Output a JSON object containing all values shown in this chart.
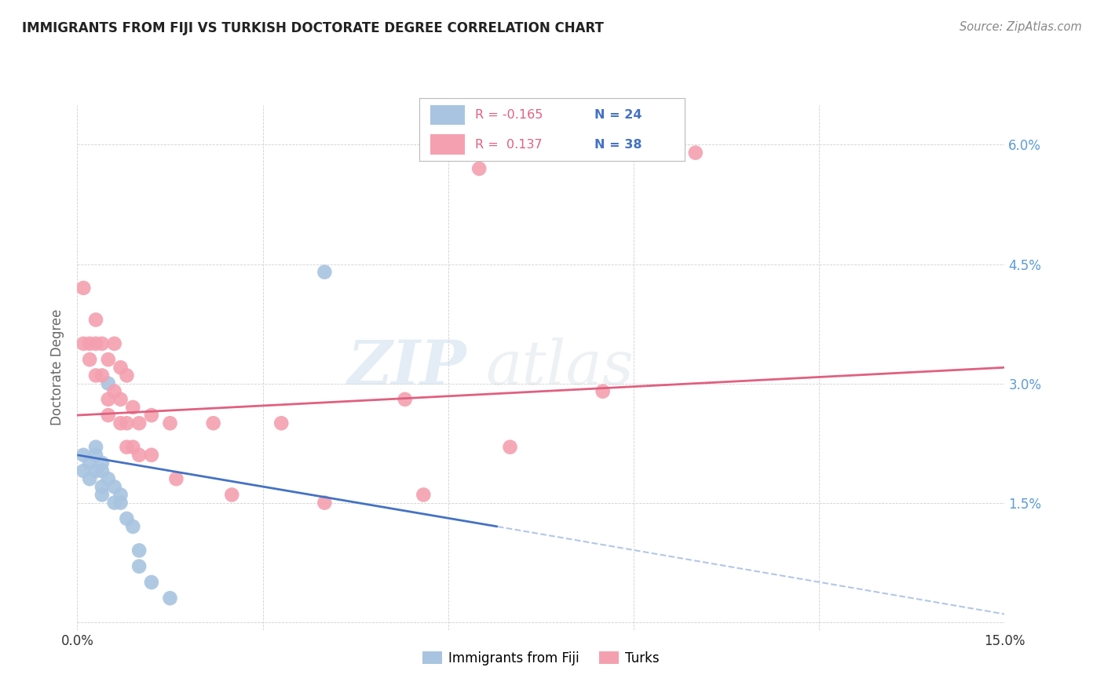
{
  "title": "IMMIGRANTS FROM FIJI VS TURKISH DOCTORATE DEGREE CORRELATION CHART",
  "source": "Source: ZipAtlas.com",
  "ylabel": "Doctorate Degree",
  "x_ticks": [
    0.0,
    0.03,
    0.06,
    0.09,
    0.12,
    0.15
  ],
  "y_ticks": [
    0.0,
    0.015,
    0.03,
    0.045,
    0.06
  ],
  "y_ticklabels_right": [
    "",
    "1.5%",
    "3.0%",
    "4.5%",
    "6.0%"
  ],
  "xlim": [
    0.0,
    0.15
  ],
  "ylim": [
    -0.001,
    0.065
  ],
  "fiji_color": "#a8c4e0",
  "turks_color": "#f4a0b0",
  "fiji_line_color": "#4472c4",
  "turks_line_color": "#e06080",
  "watermark_zip": "ZIP",
  "watermark_atlas": "atlas",
  "title_color": "#222222",
  "right_axis_color": "#5b9bd5",
  "fiji_scatter_x": [
    0.001,
    0.001,
    0.002,
    0.002,
    0.003,
    0.003,
    0.003,
    0.004,
    0.004,
    0.004,
    0.004,
    0.005,
    0.005,
    0.006,
    0.006,
    0.007,
    0.007,
    0.008,
    0.009,
    0.01,
    0.01,
    0.012,
    0.015,
    0.04
  ],
  "fiji_scatter_y": [
    0.021,
    0.019,
    0.02,
    0.018,
    0.022,
    0.021,
    0.019,
    0.02,
    0.019,
    0.017,
    0.016,
    0.03,
    0.018,
    0.017,
    0.015,
    0.016,
    0.015,
    0.013,
    0.012,
    0.009,
    0.007,
    0.005,
    0.003,
    0.044
  ],
  "turks_scatter_x": [
    0.001,
    0.001,
    0.002,
    0.002,
    0.003,
    0.003,
    0.003,
    0.004,
    0.004,
    0.005,
    0.005,
    0.005,
    0.006,
    0.006,
    0.007,
    0.007,
    0.007,
    0.008,
    0.008,
    0.008,
    0.009,
    0.009,
    0.01,
    0.01,
    0.012,
    0.012,
    0.015,
    0.016,
    0.022,
    0.025,
    0.033,
    0.04,
    0.053,
    0.056,
    0.065,
    0.07,
    0.085,
    0.1
  ],
  "turks_scatter_y": [
    0.042,
    0.035,
    0.035,
    0.033,
    0.038,
    0.035,
    0.031,
    0.035,
    0.031,
    0.033,
    0.028,
    0.026,
    0.035,
    0.029,
    0.032,
    0.028,
    0.025,
    0.031,
    0.025,
    0.022,
    0.027,
    0.022,
    0.025,
    0.021,
    0.026,
    0.021,
    0.025,
    0.018,
    0.025,
    0.016,
    0.025,
    0.015,
    0.028,
    0.016,
    0.057,
    0.022,
    0.029,
    0.059
  ],
  "fiji_line_x0": 0.0,
  "fiji_line_x1": 0.068,
  "fiji_line_y0": 0.021,
  "fiji_line_y1": 0.012,
  "fiji_ext_line_x0": 0.068,
  "fiji_ext_line_x1": 0.15,
  "fiji_ext_line_y0": 0.012,
  "fiji_ext_line_y1": 0.001,
  "turks_line_x0": 0.0,
  "turks_line_x1": 0.15,
  "turks_line_y0": 0.026,
  "turks_line_y1": 0.032,
  "background_color": "#ffffff",
  "grid_color": "#d0d0d0"
}
